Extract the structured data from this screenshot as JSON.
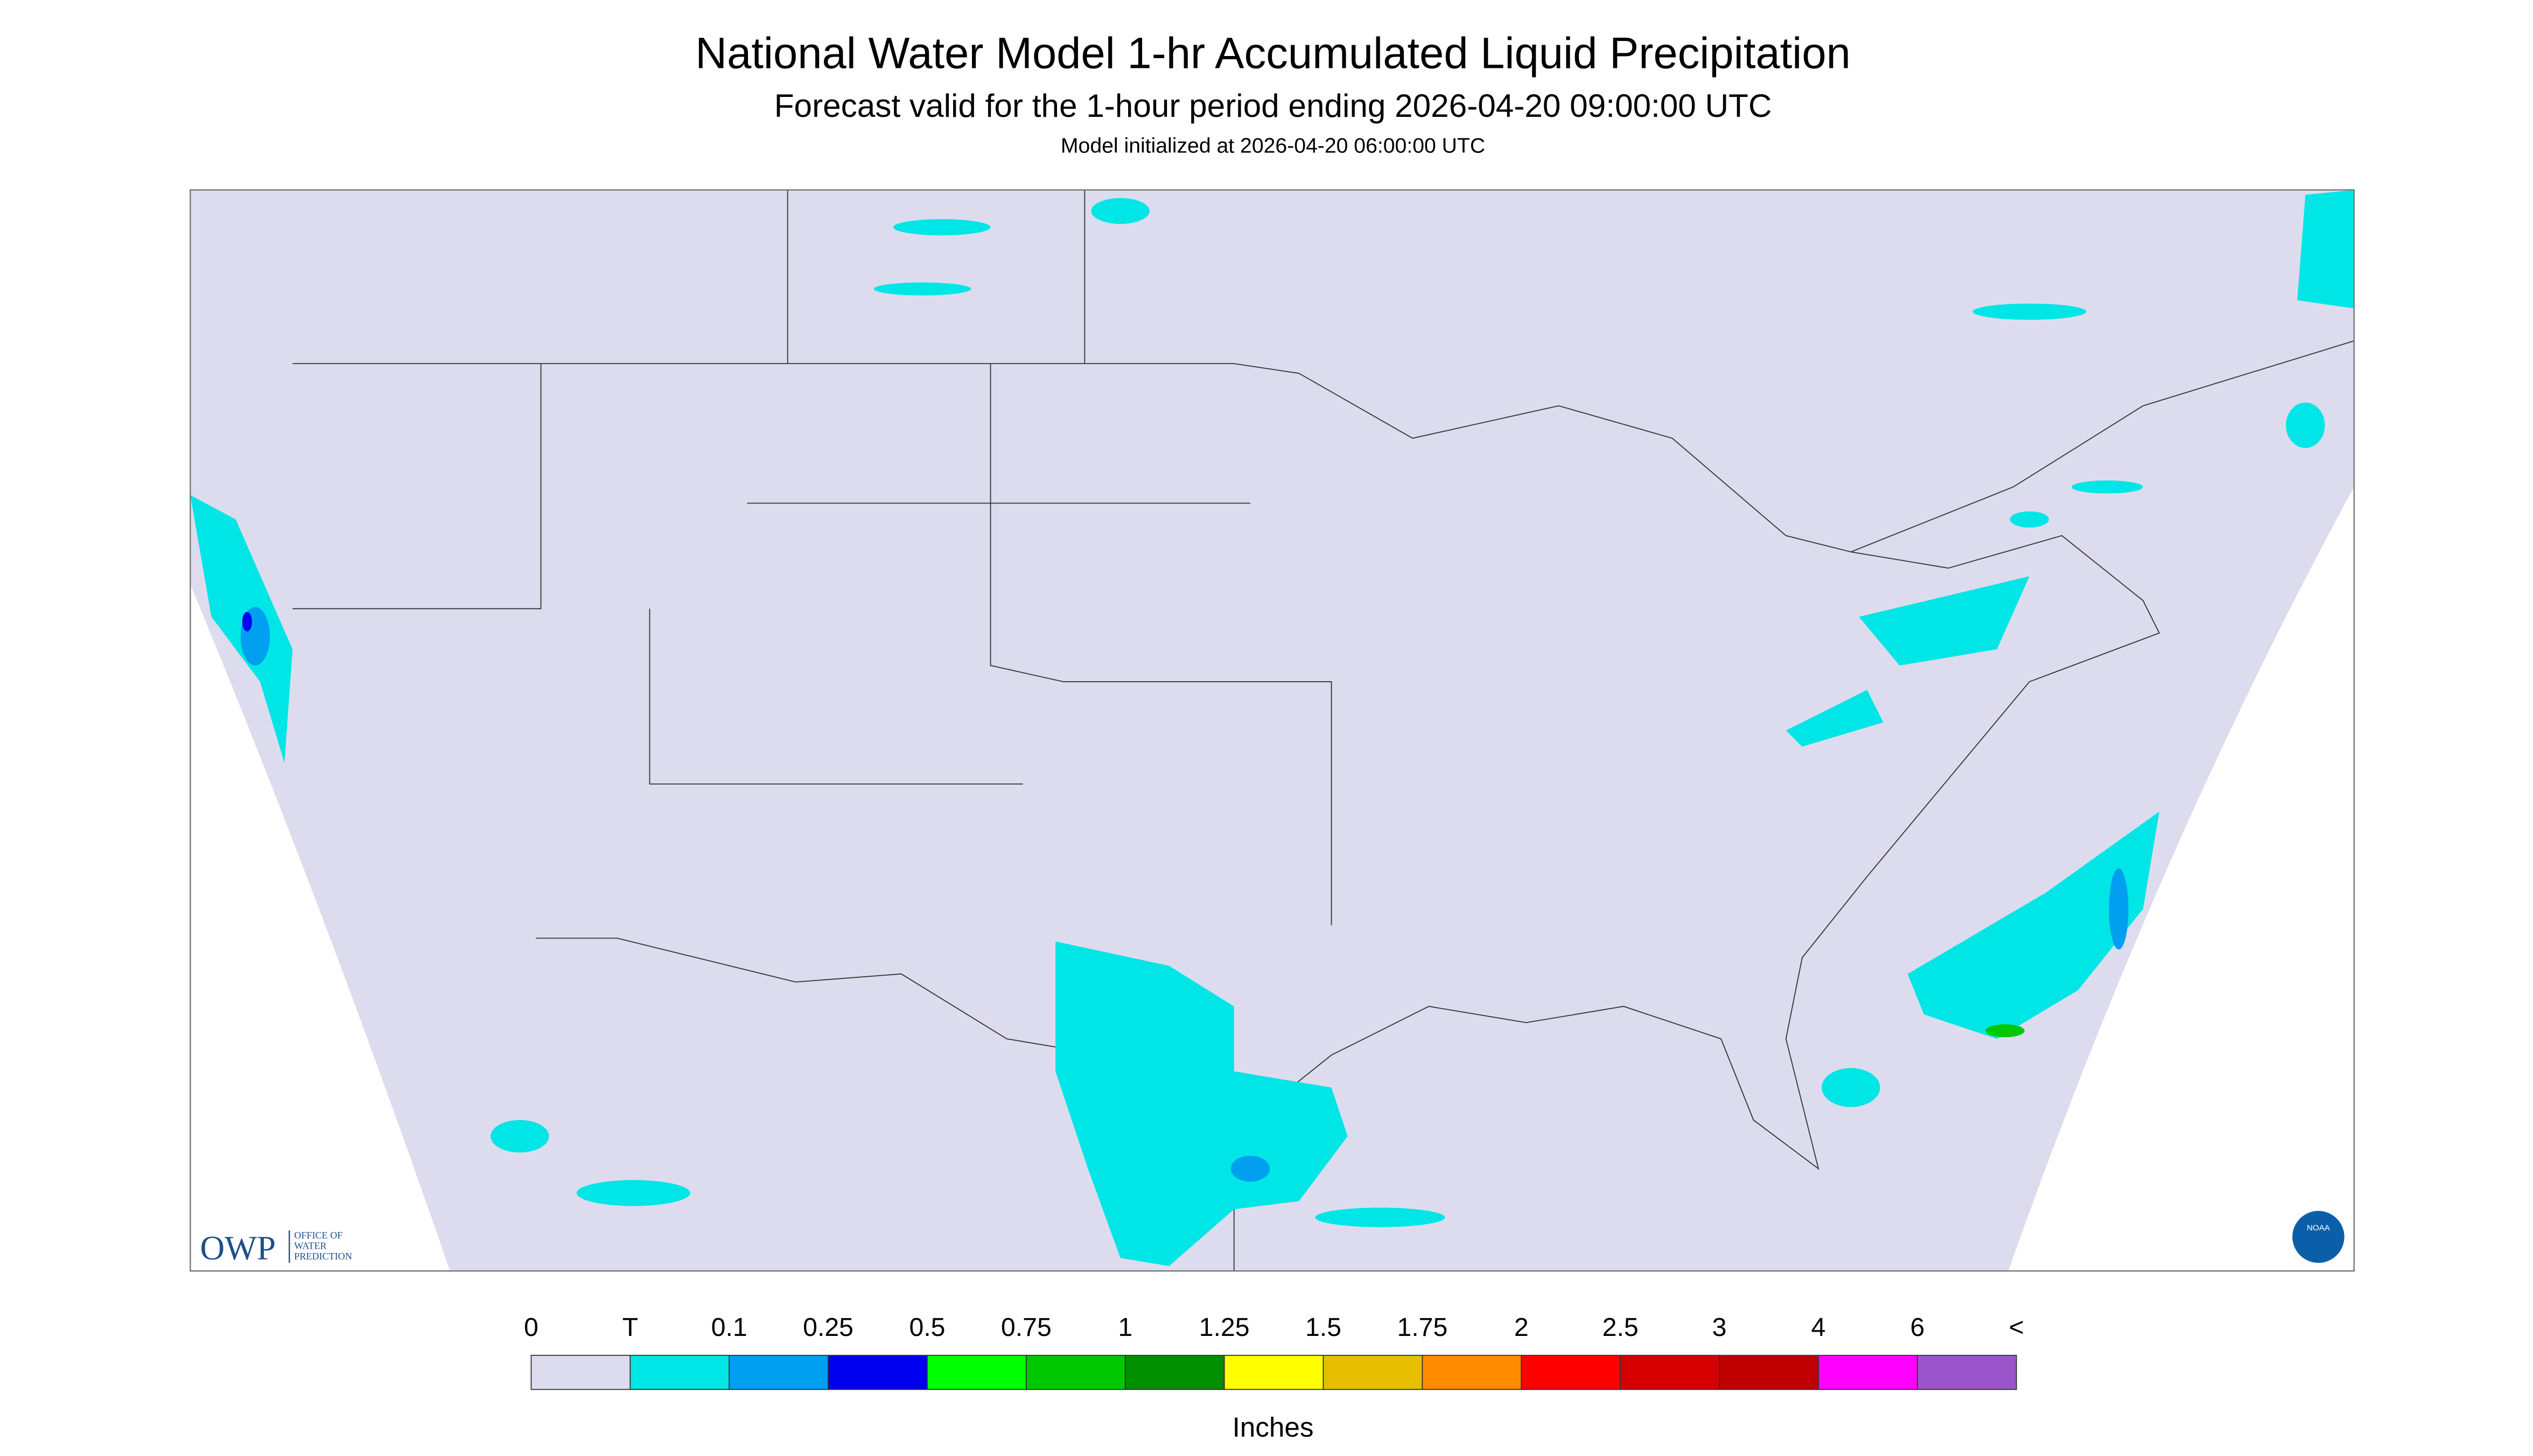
{
  "header": {
    "title": "National Water Model 1-hr Accumulated Liquid Precipitation",
    "subtitle": "Forecast valid for the 1-hour period ending 2026-04-20 09:00:00 UTC",
    "note": "Model initialized at 2026-04-20 06:00:00 UTC"
  },
  "logo": {
    "acronym": "OWP",
    "lines": [
      "OFFICE OF",
      "WATER",
      "PREDICTION"
    ],
    "badge": "NOAA"
  },
  "legend": {
    "labels": [
      "0",
      "T",
      "0.1",
      "0.25",
      "0.5",
      "0.75",
      "1",
      "1.25",
      "1.5",
      "1.75",
      "2",
      "2.5",
      "3",
      "4",
      "6",
      "<"
    ],
    "colors": [
      "#dcdcee",
      "#00e6e6",
      "#009ff0",
      "#0000f0",
      "#00ff00",
      "#00c800",
      "#008f00",
      "#ffff00",
      "#e6c000",
      "#ff8c00",
      "#ff0000",
      "#d60000",
      "#c00000",
      "#ff00ff",
      "#9955c9"
    ],
    "unit": "Inches"
  }
}
